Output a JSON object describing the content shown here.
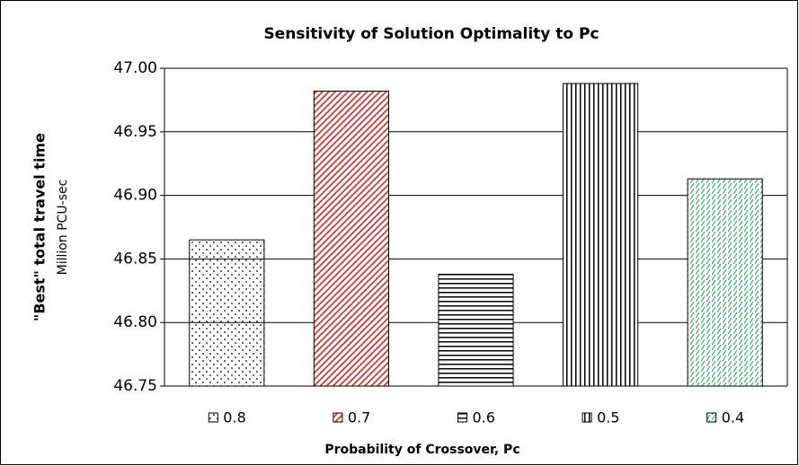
{
  "chart_data": {
    "type": "bar",
    "title": "Sensitivity of Solution Optimality to Pc",
    "y_label": "\"Best\" total travel time",
    "y_sublabel": "Million PCU-sec",
    "x_label": "Probability of Crossover, Pc",
    "categories": [
      "0.8",
      "0.7",
      "0.6",
      "0.5",
      "0.4"
    ],
    "values": [
      46.865,
      46.982,
      46.838,
      46.988,
      46.913
    ],
    "colors": [
      "#000000",
      "#c0504d",
      "#000000",
      "#000000",
      "#4caf7a"
    ],
    "ylim": [
      46.75,
      47.0
    ],
    "yticks": [
      {
        "value": 46.75,
        "label": "46.75"
      },
      {
        "value": 46.8,
        "label": "46.80"
      },
      {
        "value": 46.85,
        "label": "46.85"
      },
      {
        "value": 46.9,
        "label": "46.90"
      },
      {
        "value": 46.95,
        "label": "46.95"
      },
      {
        "value": 47.0,
        "label": "47.00"
      }
    ],
    "grid": true
  }
}
